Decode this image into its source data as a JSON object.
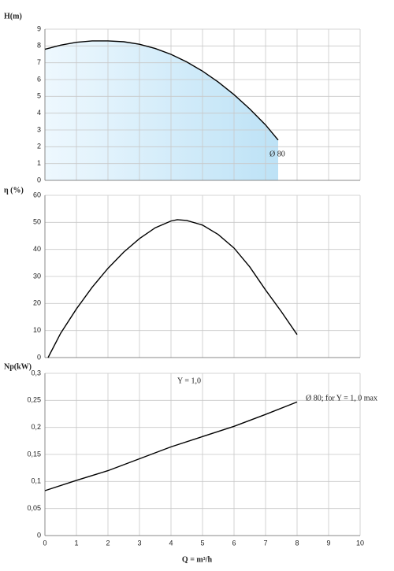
{
  "chart_data": [
    {
      "type": "line",
      "y_label": "H(m)",
      "xlim": [
        0,
        10
      ],
      "xticks": [
        0,
        1,
        2,
        3,
        4,
        5,
        6,
        7,
        8,
        9,
        10
      ],
      "show_xtick_labels": false,
      "ylim": [
        0,
        9
      ],
      "yticks": [
        0,
        1,
        2,
        3,
        4,
        5,
        6,
        7,
        8,
        9
      ],
      "grid": true,
      "fill": true,
      "fill_colors": [
        "#eef8fe",
        "#bde2f6"
      ],
      "annotations": [
        "Ø 80"
      ],
      "series": [
        {
          "color": "#000000",
          "x": [
            0,
            0.5,
            1,
            1.5,
            2,
            2.5,
            3,
            3.5,
            4,
            4.5,
            5,
            5.5,
            6,
            6.5,
            7,
            7.4
          ],
          "values": [
            7.8,
            8.05,
            8.22,
            8.3,
            8.3,
            8.25,
            8.1,
            7.85,
            7.5,
            7.05,
            6.5,
            5.85,
            5.1,
            4.25,
            3.3,
            2.4
          ]
        }
      ]
    },
    {
      "type": "line",
      "y_label": "η (%)",
      "xlim": [
        0,
        10
      ],
      "xticks": [
        0,
        1,
        2,
        3,
        4,
        5,
        6,
        7,
        8,
        9,
        10
      ],
      "show_xtick_labels": false,
      "ylim": [
        0,
        60
      ],
      "yticks": [
        0,
        10,
        20,
        30,
        40,
        50,
        60
      ],
      "grid": true,
      "fill": false,
      "annotations": [],
      "series": [
        {
          "color": "#000000",
          "x": [
            0.1,
            0.5,
            1,
            1.5,
            2,
            2.5,
            3,
            3.5,
            4,
            4.2,
            4.5,
            5,
            5.5,
            6,
            6.5,
            7,
            7.5,
            8
          ],
          "values": [
            0,
            9,
            18,
            26,
            33,
            39,
            44,
            48,
            50.5,
            51,
            50.7,
            49,
            45.5,
            40.5,
            33.5,
            25,
            17,
            8.5
          ]
        }
      ]
    },
    {
      "type": "line",
      "y_label": "Np(kW)",
      "x_label": "Q = m³/h",
      "xlim": [
        0,
        10
      ],
      "xticks": [
        0,
        1,
        2,
        3,
        4,
        5,
        6,
        7,
        8,
        9,
        10
      ],
      "show_xtick_labels": true,
      "ylim": [
        0,
        0.3
      ],
      "yticks": [
        0,
        {
          "value": 0.05,
          "label": "0,05"
        },
        {
          "value": 0.1,
          "label": "0,1"
        },
        {
          "value": 0.15,
          "label": "0,15"
        },
        {
          "value": 0.2,
          "label": "0,2"
        },
        {
          "value": 0.25,
          "label": "0,25"
        },
        {
          "value": 0.3,
          "label": "0,3"
        }
      ],
      "grid": true,
      "fill": false,
      "annotations": [
        "Y = 1,0",
        "Ø 80;  for Y = 1, 0 max"
      ],
      "series": [
        {
          "color": "#000000",
          "x": [
            0,
            1,
            2,
            3,
            4,
            5,
            6,
            7,
            8
          ],
          "values": [
            0.083,
            0.102,
            0.12,
            0.142,
            0.164,
            0.183,
            0.202,
            0.224,
            0.247
          ]
        }
      ]
    }
  ]
}
